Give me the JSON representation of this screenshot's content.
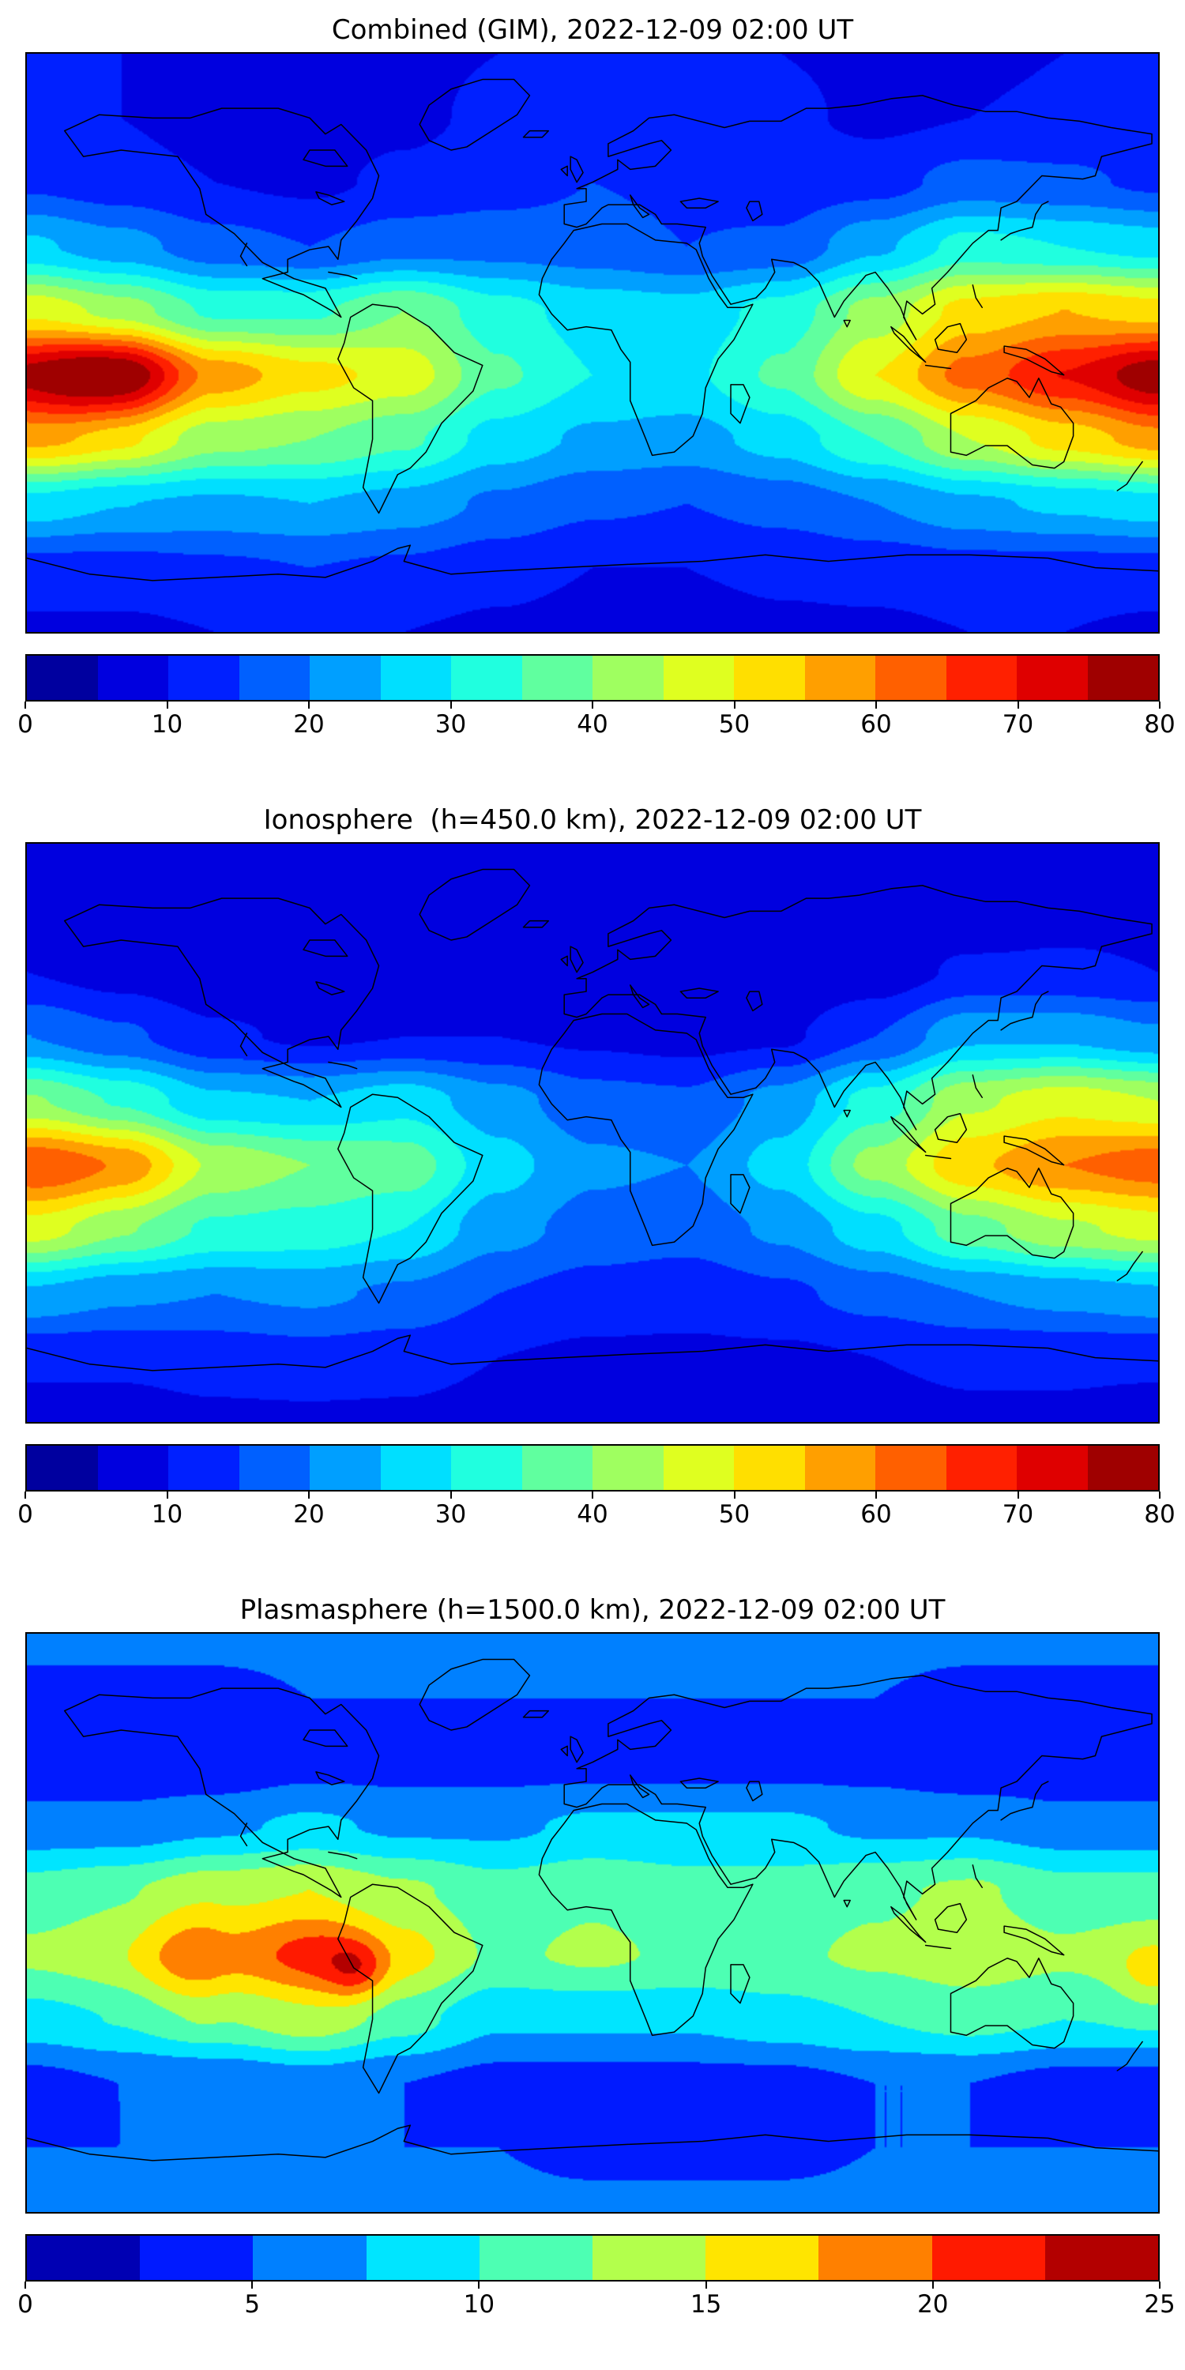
{
  "chart_data": [
    {
      "type": "heatmap",
      "subtype": "filled-contour-world-map",
      "title": "Combined (GIM), 2022-12-09 02:00 UT",
      "colormap": "jet",
      "projection": "equirectangular, lon -180..180, lat -90..90",
      "value_range": [
        0,
        80
      ],
      "contour_step": 5,
      "colorbar_ticks": [
        0,
        10,
        20,
        30,
        40,
        50,
        60,
        70,
        80
      ],
      "lon": [
        -180,
        -150,
        -120,
        -90,
        -60,
        -30,
        0,
        30,
        60,
        90,
        120,
        150,
        180
      ],
      "lat": [
        90,
        70,
        50,
        30,
        10,
        -10,
        -30,
        -50,
        -70,
        -90
      ],
      "values": [
        [
          10,
          10,
          9,
          9,
          9,
          10,
          11,
          11,
          10,
          9,
          9,
          10,
          10
        ],
        [
          11,
          10,
          8,
          8,
          9,
          11,
          13,
          13,
          11,
          9,
          10,
          11,
          11
        ],
        [
          14,
          12,
          10,
          9,
          11,
          13,
          15,
          14,
          12,
          13,
          17,
          16,
          14
        ],
        [
          26,
          22,
          17,
          15,
          18,
          18,
          17,
          15,
          16,
          24,
          32,
          30,
          28
        ],
        [
          48,
          42,
          34,
          34,
          40,
          32,
          28,
          27,
          32,
          42,
          52,
          55,
          52
        ],
        [
          75,
          78,
          58,
          52,
          48,
          36,
          30,
          29,
          36,
          50,
          62,
          70,
          75
        ],
        [
          55,
          50,
          42,
          40,
          36,
          28,
          24,
          23,
          27,
          35,
          45,
          52,
          56
        ],
        [
          28,
          25,
          24,
          25,
          23,
          19,
          16,
          15,
          17,
          20,
          24,
          26,
          28
        ],
        [
          13,
          13,
          14,
          15,
          14,
          12,
          10,
          10,
          11,
          12,
          13,
          13,
          13
        ],
        [
          9,
          9,
          10,
          10,
          10,
          9,
          8,
          8,
          9,
          9,
          10,
          10,
          9
        ]
      ],
      "hotspots": [
        {
          "lon": -162,
          "lat": -14,
          "sigma_deg": 14,
          "amplitude": 5
        },
        {
          "lon": 180,
          "lat": -14,
          "sigma_deg": 12,
          "amplitude": 4
        }
      ]
    },
    {
      "type": "heatmap",
      "subtype": "filled-contour-world-map",
      "title": "Ionosphere  (h=450.0 km), 2022-12-09 02:00 UT",
      "colormap": "jet",
      "projection": "equirectangular, lon -180..180, lat -90..90",
      "value_range": [
        0,
        80
      ],
      "contour_step": 5,
      "colorbar_ticks": [
        0,
        10,
        20,
        30,
        40,
        50,
        60,
        70,
        80
      ],
      "lon": [
        -180,
        -150,
        -120,
        -90,
        -60,
        -30,
        0,
        30,
        60,
        90,
        120,
        150,
        180
      ],
      "lat": [
        90,
        70,
        50,
        30,
        10,
        -10,
        -30,
        -50,
        -70,
        -90
      ],
      "values": [
        [
          8,
          8,
          7,
          7,
          7,
          8,
          8,
          8,
          7,
          7,
          7,
          8,
          8
        ],
        [
          8,
          7,
          6,
          5,
          6,
          7,
          8,
          8,
          7,
          6,
          6,
          8,
          8
        ],
        [
          10,
          8,
          6,
          5,
          5,
          6,
          7,
          6,
          6,
          7,
          11,
          11,
          10
        ],
        [
          20,
          16,
          11,
          9,
          10,
          10,
          9,
          8,
          9,
          15,
          24,
          24,
          21
        ],
        [
          40,
          34,
          26,
          25,
          28,
          22,
          17,
          16,
          22,
          32,
          44,
          48,
          45
        ],
        [
          62,
          58,
          44,
          40,
          38,
          27,
          21,
          20,
          27,
          42,
          54,
          60,
          63
        ],
        [
          46,
          40,
          34,
          33,
          30,
          22,
          18,
          17,
          21,
          28,
          38,
          44,
          47
        ],
        [
          24,
          21,
          20,
          21,
          19,
          15,
          13,
          12,
          14,
          17,
          20,
          22,
          24
        ],
        [
          11,
          11,
          12,
          13,
          12,
          10,
          9,
          9,
          9,
          10,
          11,
          11,
          11
        ],
        [
          8,
          8,
          9,
          9,
          9,
          8,
          7,
          7,
          8,
          8,
          9,
          9,
          8
        ]
      ],
      "hotspots": [
        {
          "lon": -170,
          "lat": -15,
          "sigma_deg": 15,
          "amplitude": 3
        }
      ]
    },
    {
      "type": "heatmap",
      "subtype": "filled-contour-world-map",
      "title": "Plasmasphere (h=1500.0 km), 2022-12-09 02:00 UT",
      "colormap": "jet",
      "projection": "equirectangular, lon -180..180, lat -90..90",
      "value_range": [
        0,
        25
      ],
      "contour_step": 2.5,
      "colorbar_ticks": [
        0,
        5,
        10,
        15,
        20,
        25
      ],
      "lon": [
        -180,
        -150,
        -120,
        -90,
        -60,
        -30,
        0,
        30,
        60,
        90,
        120,
        150,
        180
      ],
      "lat": [
        90,
        70,
        50,
        30,
        10,
        -10,
        -30,
        -50,
        -70,
        -90
      ],
      "values": [
        [
          6,
          6,
          6,
          6,
          6,
          6,
          6,
          6,
          6,
          6,
          6,
          6,
          6
        ],
        [
          4,
          4,
          4,
          5,
          5,
          5,
          5,
          5,
          5,
          5,
          4,
          4,
          4
        ],
        [
          3,
          3,
          3,
          4,
          4,
          4,
          4,
          4,
          4,
          4,
          3,
          3,
          3
        ],
        [
          6,
          6,
          7,
          8,
          7,
          7,
          8,
          8,
          8,
          7,
          7,
          6,
          6
        ],
        [
          11,
          12,
          14,
          15,
          13,
          11,
          12,
          11,
          11,
          12,
          13,
          11,
          11
        ],
        [
          13,
          14,
          17,
          21,
          16,
          12,
          13,
          12,
          12,
          13,
          14,
          13,
          14
        ],
        [
          9,
          10,
          12,
          14,
          11,
          8,
          8,
          8,
          9,
          10,
          11,
          10,
          10
        ],
        [
          4,
          5,
          5,
          6,
          5,
          4,
          4,
          4,
          4,
          5,
          5,
          4,
          4
        ],
        [
          5,
          5,
          5,
          5,
          5,
          5,
          4,
          4,
          4,
          5,
          5,
          5,
          5
        ],
        [
          6,
          6,
          6,
          6,
          6,
          6,
          6,
          6,
          6,
          6,
          6,
          6,
          6
        ]
      ],
      "hotspots": [
        {
          "lon": -75,
          "lat": -15,
          "sigma_deg": 7,
          "amplitude": 5
        },
        {
          "lon": -130,
          "lat": -12,
          "sigma_deg": 12,
          "amplitude": 3
        },
        {
          "lon": 178,
          "lat": -18,
          "sigma_deg": 8,
          "amplitude": 3
        }
      ]
    }
  ]
}
